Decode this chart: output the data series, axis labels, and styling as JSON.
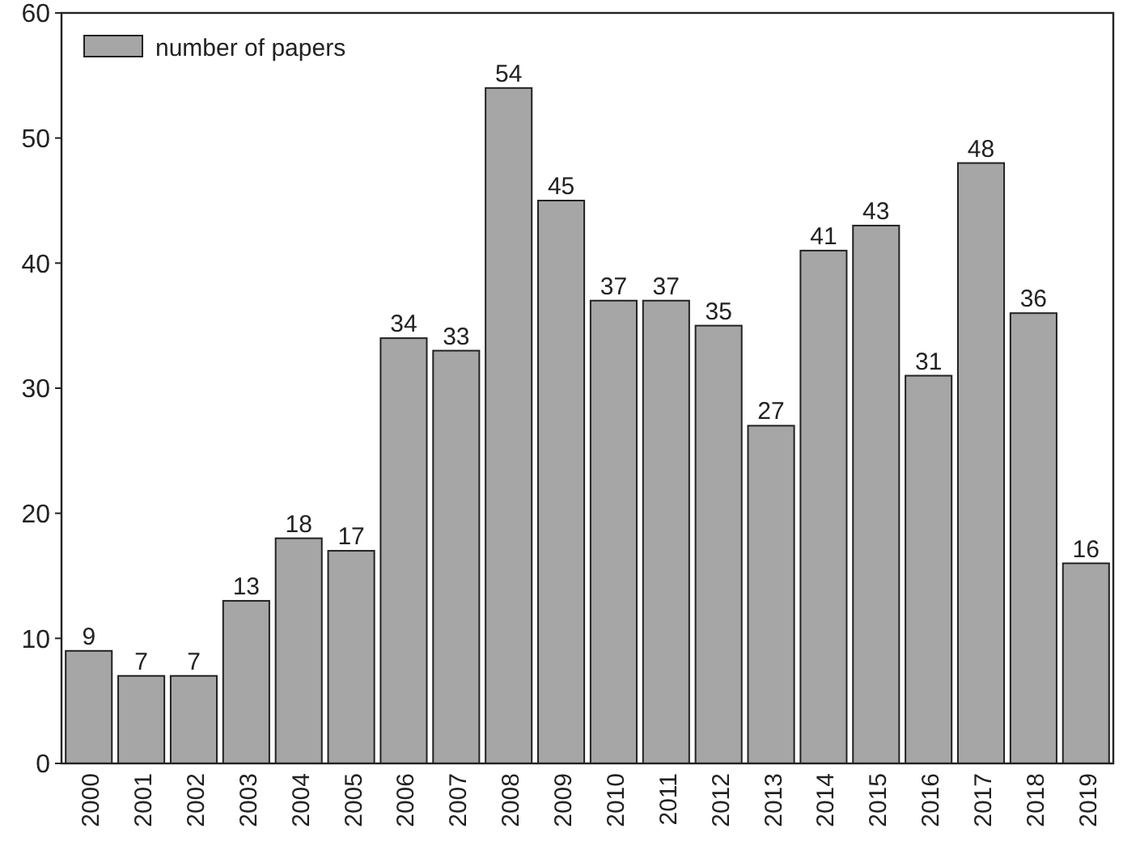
{
  "chart_data": {
    "type": "bar",
    "categories": [
      "2000",
      "2001",
      "2002",
      "2003",
      "2004",
      "2005",
      "2006",
      "2007",
      "2008",
      "2009",
      "2010",
      "2011",
      "2012",
      "2013",
      "2014",
      "2015",
      "2016",
      "2017",
      "2018",
      "2019"
    ],
    "series": [
      {
        "name": "number of papers",
        "color": "#a6a6a6",
        "values": [
          9,
          7,
          7,
          13,
          18,
          17,
          34,
          33,
          54,
          45,
          37,
          37,
          35,
          27,
          41,
          43,
          31,
          48,
          36,
          16
        ]
      }
    ],
    "ylim": [
      0,
      60
    ],
    "yticks": [
      0,
      10,
      20,
      30,
      40,
      50,
      60
    ],
    "data_labels": true,
    "legend": "top left",
    "grid": false
  }
}
